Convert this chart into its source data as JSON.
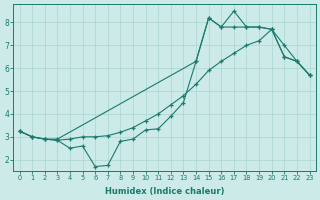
{
  "xlabel": "Humidex (Indice chaleur)",
  "bg_color": "#cceae7",
  "line_color": "#1a7a6e",
  "xlim": [
    -0.5,
    23.5
  ],
  "ylim": [
    1.5,
    8.8
  ],
  "xticks": [
    0,
    1,
    2,
    3,
    4,
    5,
    6,
    7,
    8,
    9,
    10,
    11,
    12,
    13,
    14,
    15,
    16,
    17,
    18,
    19,
    20,
    21,
    22,
    23
  ],
  "yticks": [
    2,
    3,
    4,
    5,
    6,
    7,
    8
  ],
  "series_upper_x": [
    0,
    1,
    2,
    3,
    14,
    15,
    16,
    17,
    18,
    19,
    20,
    21,
    22,
    23
  ],
  "series_upper_y": [
    3.25,
    3.0,
    2.9,
    2.9,
    6.3,
    8.2,
    7.8,
    7.8,
    7.8,
    7.8,
    7.7,
    6.5,
    6.3,
    5.7
  ],
  "series_lower_x": [
    0,
    1,
    2,
    3,
    4,
    5,
    6,
    7,
    8,
    9,
    10,
    11,
    12,
    13,
    14,
    15,
    16,
    17,
    18,
    19,
    20,
    21,
    22,
    23
  ],
  "series_lower_y": [
    3.25,
    3.0,
    2.9,
    2.85,
    2.5,
    2.6,
    1.7,
    1.75,
    2.8,
    2.9,
    3.3,
    3.35,
    3.9,
    4.5,
    6.3,
    8.2,
    7.8,
    8.5,
    7.8,
    7.8,
    7.7,
    6.5,
    6.3,
    5.7
  ],
  "series_mid_x": [
    0,
    1,
    2,
    3,
    4,
    5,
    6,
    7,
    8,
    9,
    10,
    11,
    12,
    13,
    14,
    15,
    16,
    17,
    18,
    19,
    20,
    21,
    22,
    23
  ],
  "series_mid_y": [
    3.25,
    3.0,
    2.9,
    2.85,
    2.9,
    3.0,
    3.0,
    3.05,
    3.2,
    3.4,
    3.7,
    4.0,
    4.4,
    4.8,
    5.3,
    5.9,
    6.3,
    6.65,
    7.0,
    7.2,
    7.7,
    7.0,
    6.3,
    5.7
  ]
}
